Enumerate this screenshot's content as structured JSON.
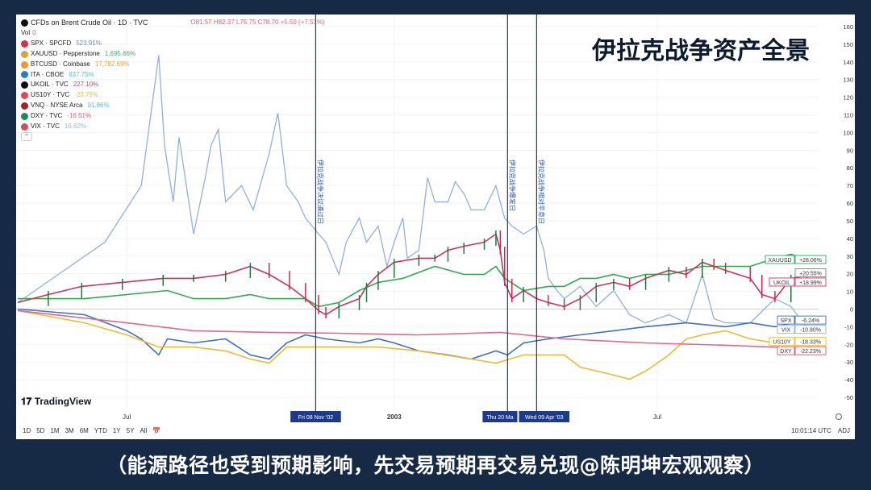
{
  "header": {
    "symbol": "CFDs on Brent Crude Oil · 1D · TVC",
    "ohlc": "O81.57 H82.37 L75.75 C78.70 +5.50 (+7.51%)",
    "vol_label": "Vol",
    "vol_value": "0"
  },
  "legend": [
    {
      "name": "SPX · SPCFD",
      "value": "523.91%",
      "color": "#5b8fd6",
      "icon": "#d0343f"
    },
    {
      "name": "XAUUSD · Pepperstone",
      "value": "1,695.66%",
      "color": "#3cb371",
      "icon": "#d9a43a"
    },
    {
      "name": "BTCUSD · Coinbase",
      "value": "17,782.69%",
      "color": "#f0a030",
      "icon": "#f09a30"
    },
    {
      "name": "ITA · CBOE",
      "value": "837.75%",
      "color": "#4fc3c8",
      "icon": "#2a7fc0"
    },
    {
      "name": "UKOIL · TVC",
      "value": "227.10%",
      "color": "#d0487a",
      "icon": "#111111"
    },
    {
      "name": "US10Y · TVC",
      "value": "-23.79%",
      "color": "#f0c040",
      "icon": "#d94a5a"
    },
    {
      "name": "VNQ · NYSE Arca",
      "value": "91.96%",
      "color": "#4fc3c8",
      "icon": "#a0222a"
    },
    {
      "name": "DXY · TVC",
      "value": "-16.51%",
      "color": "#e06080",
      "icon": "#1f8a5a"
    },
    {
      "name": "VIX · TVC",
      "value": "16.62%",
      "color": "#9ab8e6",
      "icon": "#d94a5a"
    }
  ],
  "overlay_title": "伊拉克战争资产全景",
  "brand": "TradingView",
  "toolbar": [
    "1D",
    "5D",
    "1M",
    "3M",
    "6M",
    "YTD",
    "1Y",
    "5Y",
    "All"
  ],
  "clock": "10:01:14 UTC",
  "adj": "ADJ",
  "caption": "（能源路径也受到预期影响，先交易预期再交易兑现@陈明坤宏观观察）",
  "chart_data": {
    "type": "line",
    "title": "伊拉克战争资产全景",
    "xlim": [
      "2002-04-17",
      "2003-10-20"
    ],
    "ylim": [
      -50,
      160
    ],
    "yticks": [
      -50,
      -40,
      -30,
      -20,
      -10,
      0,
      10,
      20,
      30,
      40,
      50,
      60,
      70,
      80,
      90,
      100,
      110,
      120,
      130,
      140,
      150,
      160
    ],
    "xticks": [
      {
        "date": "2002-07-01",
        "label": "Jul"
      },
      {
        "date": "2003-01-01",
        "label": "2003"
      },
      {
        "date": "2003-07-01",
        "label": "Jul"
      }
    ],
    "events": [
      {
        "date": "2002-11-08",
        "label": "Fri 08 Nov '02",
        "note": "伊拉克战争决议通过日"
      },
      {
        "date": "2003-03-20",
        "label": "Thu 20 Ma",
        "note": "伊拉克战争爆发日"
      },
      {
        "date": "2003-04-09",
        "label": "Wed 09 Apr '03",
        "note": "伊拉克战争相对平息日"
      }
    ],
    "end_labels": [
      {
        "name": "XAUUSD",
        "value": "+28.06%",
        "y": 28.06,
        "color": "#3cb371"
      },
      {
        "name": "",
        "value": "+20.55%",
        "y": 20.55,
        "color": "#3cb371"
      },
      {
        "name": "UKOIL",
        "value": "+18.99%",
        "y": 18.99,
        "color": "#d0487a"
      },
      {
        "name": "SPX",
        "value": "-6.24%",
        "y": -6.24,
        "color": "#4a78c8"
      },
      {
        "name": "VIX",
        "value": "-10.80%",
        "y": -10.8,
        "color": "#9ab8e6"
      },
      {
        "name": "US10Y",
        "value": "-18.33%",
        "y": -18.33,
        "color": "#f0c040"
      },
      {
        "name": "DXY",
        "value": "-22.23%",
        "y": -22.23,
        "color": "#e06080"
      }
    ],
    "series": [
      {
        "name": "VIX",
        "color": "#8fb0e0",
        "points": [
          [
            "2002-04-17",
            3.7
          ],
          [
            "2002-06-16",
            37.9
          ],
          [
            "2002-07-11",
            69.9
          ],
          [
            "2002-07-23",
            143.8
          ],
          [
            "2002-07-27",
            92.7
          ],
          [
            "2002-08-02",
            60.7
          ],
          [
            "2002-08-06",
            97.3
          ],
          [
            "2002-08-11",
            69.9
          ],
          [
            "2002-08-16",
            42.5
          ],
          [
            "2002-08-24",
            74.4
          ],
          [
            "2002-08-28",
            92.7
          ],
          [
            "2002-09-02",
            101.8
          ],
          [
            "2002-09-07",
            60.7
          ],
          [
            "2002-09-18",
            69.9
          ],
          [
            "2002-09-26",
            56.2
          ],
          [
            "2002-10-07",
            88.1
          ],
          [
            "2002-10-13",
            111.0
          ],
          [
            "2002-10-19",
            69.9
          ],
          [
            "2002-10-27",
            60.7
          ],
          [
            "2002-11-01",
            51.6
          ],
          [
            "2002-11-10",
            42.5
          ],
          [
            "2002-11-15",
            37.9
          ],
          [
            "2002-11-24",
            19.6
          ],
          [
            "2002-11-29",
            37.9
          ],
          [
            "2002-12-08",
            51.6
          ],
          [
            "2002-12-13",
            37.9
          ],
          [
            "2002-12-21",
            47.0
          ],
          [
            "2002-12-27",
            24.2
          ],
          [
            "2003-01-01",
            37.9
          ],
          [
            "2003-01-07",
            51.6
          ],
          [
            "2003-01-10",
            28.8
          ],
          [
            "2003-01-18",
            33.3
          ],
          [
            "2003-01-24",
            74.4
          ],
          [
            "2003-01-29",
            60.7
          ],
          [
            "2003-02-07",
            60.7
          ],
          [
            "2003-02-12",
            72.1
          ],
          [
            "2003-02-18",
            65.3
          ],
          [
            "2003-02-23",
            56.2
          ],
          [
            "2003-03-04",
            56.2
          ],
          [
            "2003-03-12",
            69.9
          ],
          [
            "2003-03-18",
            51.6
          ],
          [
            "2003-03-23",
            47.0
          ],
          [
            "2003-03-31",
            42.5
          ],
          [
            "2003-04-09",
            47.0
          ],
          [
            "2003-04-14",
            33.3
          ],
          [
            "2003-04-17",
            17.4
          ],
          [
            "2003-04-23",
            10.5
          ],
          [
            "2003-04-28",
            5.9
          ],
          [
            "2003-05-09",
            12.8
          ],
          [
            "2003-05-20",
            1.4
          ],
          [
            "2003-06-01",
            10.5
          ],
          [
            "2003-06-12",
            -3.2
          ],
          [
            "2003-06-23",
            -7.8
          ],
          [
            "2003-07-09",
            -3.2
          ],
          [
            "2003-07-21",
            -7.8
          ],
          [
            "2003-08-01",
            19.6
          ],
          [
            "2003-08-09",
            -5.5
          ],
          [
            "2003-08-17",
            -7.8
          ],
          [
            "2003-09-03",
            -7.8
          ],
          [
            "2003-09-20",
            5.9
          ],
          [
            "2003-10-01",
            1.4
          ],
          [
            "2003-10-12",
            -10.8
          ]
        ]
      },
      {
        "name": "XAUUSD",
        "color": "#2eaa4e",
        "points": [
          [
            "2002-04-17",
            5.9
          ],
          [
            "2002-06-02",
            5.9
          ],
          [
            "2002-07-01",
            8.2
          ],
          [
            "2002-07-29",
            10.5
          ],
          [
            "2002-08-16",
            5.9
          ],
          [
            "2002-09-07",
            5.9
          ],
          [
            "2002-09-24",
            8.2
          ],
          [
            "2002-10-07",
            5.9
          ],
          [
            "2002-10-21",
            5.9
          ],
          [
            "2002-11-01",
            5.9
          ],
          [
            "2002-11-10",
            1.4
          ],
          [
            "2002-11-24",
            3.7
          ],
          [
            "2002-12-08",
            10.5
          ],
          [
            "2002-12-21",
            15.1
          ],
          [
            "2003-01-07",
            17.4
          ],
          [
            "2003-01-29",
            24.2
          ],
          [
            "2003-02-18",
            19.6
          ],
          [
            "2003-03-04",
            19.6
          ],
          [
            "2003-03-12",
            24.2
          ],
          [
            "2003-03-18",
            17.4
          ],
          [
            "2003-03-31",
            10.5
          ],
          [
            "2003-04-17",
            12.8
          ],
          [
            "2003-04-28",
            12.8
          ],
          [
            "2003-05-09",
            17.4
          ],
          [
            "2003-05-20",
            17.4
          ],
          [
            "2003-06-01",
            19.6
          ],
          [
            "2003-06-12",
            17.4
          ],
          [
            "2003-06-23",
            19.6
          ],
          [
            "2003-07-09",
            19.6
          ],
          [
            "2003-07-21",
            21.9
          ],
          [
            "2003-08-01",
            24.2
          ],
          [
            "2003-08-17",
            24.2
          ],
          [
            "2003-09-03",
            24.2
          ],
          [
            "2003-09-20",
            28.8
          ],
          [
            "2003-10-01",
            31.1
          ],
          [
            "2003-10-12",
            28.06
          ]
        ]
      },
      {
        "name": "UKOIL",
        "color": "#c8325e",
        "points": [
          [
            "2002-04-17",
            3.7
          ],
          [
            "2002-05-08",
            8.2
          ],
          [
            "2002-05-31",
            12.8
          ],
          [
            "2002-06-28",
            15.1
          ],
          [
            "2002-07-26",
            17.4
          ],
          [
            "2002-08-16",
            17.4
          ],
          [
            "2002-09-07",
            19.6
          ],
          [
            "2002-09-24",
            24.2
          ],
          [
            "2002-10-07",
            19.6
          ],
          [
            "2002-10-21",
            12.8
          ],
          [
            "2002-11-01",
            5.9
          ],
          [
            "2002-11-10",
            -0.9
          ],
          [
            "2002-11-15",
            -3.2
          ],
          [
            "2002-11-24",
            1.4
          ],
          [
            "2002-12-08",
            5.9
          ],
          [
            "2002-12-13",
            12.8
          ],
          [
            "2002-12-21",
            19.6
          ],
          [
            "2003-01-01",
            26.5
          ],
          [
            "2003-01-18",
            28.8
          ],
          [
            "2003-01-29",
            28.8
          ],
          [
            "2003-02-07",
            33.3
          ],
          [
            "2003-02-18",
            35.6
          ],
          [
            "2003-03-04",
            37.9
          ],
          [
            "2003-03-12",
            42.5
          ],
          [
            "2003-03-15",
            33.3
          ],
          [
            "2003-03-18",
            15.1
          ],
          [
            "2003-03-23",
            5.9
          ],
          [
            "2003-03-31",
            10.5
          ],
          [
            "2003-04-09",
            5.9
          ],
          [
            "2003-04-17",
            3.7
          ],
          [
            "2003-04-28",
            1.4
          ],
          [
            "2003-05-09",
            5.9
          ],
          [
            "2003-05-20",
            12.8
          ],
          [
            "2003-06-01",
            15.1
          ],
          [
            "2003-06-12",
            12.8
          ],
          [
            "2003-06-23",
            17.4
          ],
          [
            "2003-07-09",
            21.9
          ],
          [
            "2003-07-21",
            19.6
          ],
          [
            "2003-08-01",
            26.5
          ],
          [
            "2003-08-09",
            24.2
          ],
          [
            "2003-08-17",
            21.9
          ],
          [
            "2003-09-03",
            17.4
          ],
          [
            "2003-09-11",
            8.2
          ],
          [
            "2003-09-20",
            5.9
          ],
          [
            "2003-10-01",
            17.4
          ],
          [
            "2003-10-12",
            18.99
          ]
        ]
      },
      {
        "name": "SPX",
        "color": "#3f6fc8",
        "points": [
          [
            "2002-04-17",
            0
          ],
          [
            "2002-06-02",
            -3.2
          ],
          [
            "2002-07-01",
            -12.3
          ],
          [
            "2002-07-11",
            -16.9
          ],
          [
            "2002-07-23",
            -26.0
          ],
          [
            "2002-07-29",
            -16.9
          ],
          [
            "2002-08-16",
            -19.2
          ],
          [
            "2002-09-07",
            -16.9
          ],
          [
            "2002-09-24",
            -26.0
          ],
          [
            "2002-10-07",
            -28.3
          ],
          [
            "2002-10-19",
            -19.2
          ],
          [
            "2002-11-01",
            -14.6
          ],
          [
            "2002-11-15",
            -16.9
          ],
          [
            "2002-12-08",
            -19.2
          ],
          [
            "2002-12-21",
            -16.9
          ],
          [
            "2003-01-01",
            -19.2
          ],
          [
            "2003-01-18",
            -23.7
          ],
          [
            "2003-02-07",
            -26.0
          ],
          [
            "2003-02-23",
            -28.3
          ],
          [
            "2003-03-12",
            -23.7
          ],
          [
            "2003-03-20",
            -26.0
          ],
          [
            "2003-03-31",
            -19.2
          ],
          [
            "2003-04-17",
            -16.9
          ],
          [
            "2003-05-09",
            -14.6
          ],
          [
            "2003-06-01",
            -12.3
          ],
          [
            "2003-06-23",
            -10.0
          ],
          [
            "2003-07-21",
            -7.8
          ],
          [
            "2003-08-17",
            -10.0
          ],
          [
            "2003-09-03",
            -7.8
          ],
          [
            "2003-09-20",
            -10.0
          ],
          [
            "2003-10-12",
            -6.24
          ]
        ]
      },
      {
        "name": "US10Y",
        "color": "#f0b930",
        "points": [
          [
            "2002-04-17",
            -0.9
          ],
          [
            "2002-06-02",
            -7.8
          ],
          [
            "2002-07-01",
            -14.6
          ],
          [
            "2002-07-23",
            -21.5
          ],
          [
            "2002-08-16",
            -21.5
          ],
          [
            "2002-09-07",
            -23.7
          ],
          [
            "2002-09-24",
            -28.3
          ],
          [
            "2002-10-07",
            -30.6
          ],
          [
            "2002-10-19",
            -21.5
          ],
          [
            "2002-11-01",
            -21.5
          ],
          [
            "2002-11-24",
            -21.5
          ],
          [
            "2002-12-21",
            -21.5
          ],
          [
            "2003-01-18",
            -23.7
          ],
          [
            "2003-02-23",
            -28.3
          ],
          [
            "2003-03-12",
            -30.6
          ],
          [
            "2003-03-31",
            -26.0
          ],
          [
            "2003-04-28",
            -26.0
          ],
          [
            "2003-05-09",
            -32.9
          ],
          [
            "2003-06-01",
            -37.4
          ],
          [
            "2003-06-12",
            -39.7
          ],
          [
            "2003-06-23",
            -35.2
          ],
          [
            "2003-07-09",
            -26.0
          ],
          [
            "2003-07-21",
            -16.9
          ],
          [
            "2003-08-01",
            -14.6
          ],
          [
            "2003-08-17",
            -12.3
          ],
          [
            "2003-09-03",
            -16.9
          ],
          [
            "2003-09-20",
            -19.2
          ],
          [
            "2003-10-12",
            -18.33
          ]
        ]
      },
      {
        "name": "DXY",
        "color": "#e2698a",
        "points": [
          [
            "2002-04-17",
            -0.9
          ],
          [
            "2002-07-01",
            -7.8
          ],
          [
            "2002-08-16",
            -12.3
          ],
          [
            "2002-10-07",
            -13.2
          ],
          [
            "2002-11-24",
            -13.7
          ],
          [
            "2003-01-18",
            -14.6
          ],
          [
            "2003-03-15",
            -13.2
          ],
          [
            "2003-04-28",
            -16.9
          ],
          [
            "2003-06-23",
            -19.2
          ],
          [
            "2003-08-17",
            -20.5
          ],
          [
            "2003-10-12",
            -22.23
          ]
        ]
      }
    ]
  }
}
